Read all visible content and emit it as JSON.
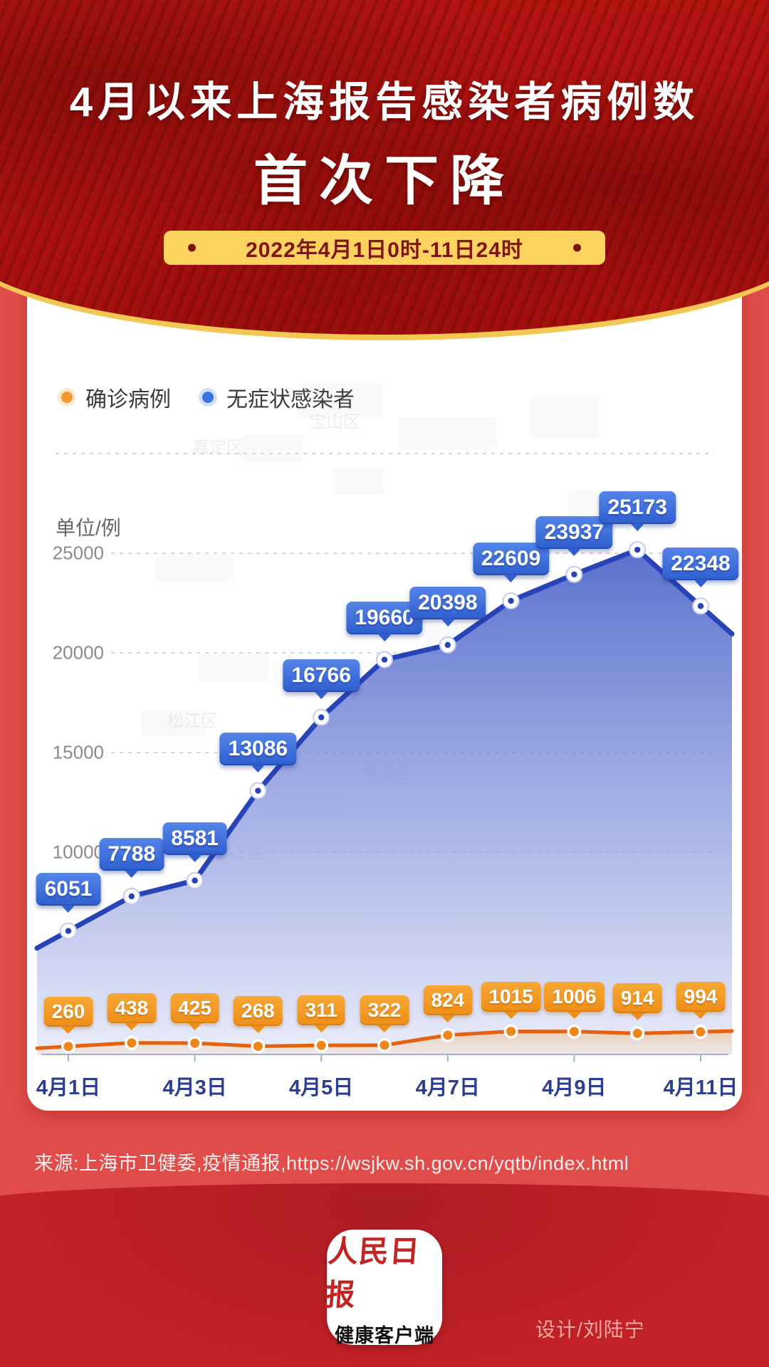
{
  "header": {
    "title_line1": "4月以来上海报告感染者病例数",
    "title_line2": "首次下降",
    "badge": "2022年4月1日0时-11日24时"
  },
  "legend": [
    {
      "label": "确诊病例",
      "color": "#F29A2E"
    },
    {
      "label": "无症状感染者",
      "color": "#3B74E0"
    }
  ],
  "chart_data": {
    "type": "area",
    "unit_label": "单位/例",
    "y_ticks": [
      25000,
      20000,
      15000,
      10000
    ],
    "ylim": [
      0,
      30000
    ],
    "grid": "dashed",
    "x_tick_labels": [
      "4月1日",
      "4月3日",
      "4月5日",
      "4月7日",
      "4月9日",
      "4月11日"
    ],
    "series": [
      {
        "name": "无症状感染者",
        "color": "#2B46B5",
        "values": [
          6051,
          7788,
          8581,
          13086,
          16766,
          19660,
          20398,
          22609,
          23937,
          25173,
          22348
        ]
      },
      {
        "name": "确诊病例",
        "color": "#E4610F",
        "values": [
          260,
          438,
          425,
          268,
          311,
          322,
          824,
          1015,
          1006,
          914,
          994
        ]
      }
    ]
  },
  "watermark_districts": [
    "宝山区",
    "嘉定区",
    "松江区",
    "浦东新区",
    "奉贤区",
    "金山区"
  ],
  "source": "来源:上海市卫健委,疫情通报,https://wsjkw.sh.gov.cn/yqtb/index.html",
  "footer": {
    "logo_line1": "人民日报",
    "logo_line2": "健康客户端",
    "credit": "设计/刘陆宁"
  },
  "colors": {
    "header_red": "#AB1410",
    "gold_rim": "#F2C753",
    "badge_yellow": "#FBD35E",
    "badge_text": "#7E150E",
    "band_red": "#E04C49",
    "footer_red": "#C12127",
    "blue_tag": "#3B74E0",
    "orange_tag": "#F29A2E",
    "x_label": "#2C3E8F"
  }
}
